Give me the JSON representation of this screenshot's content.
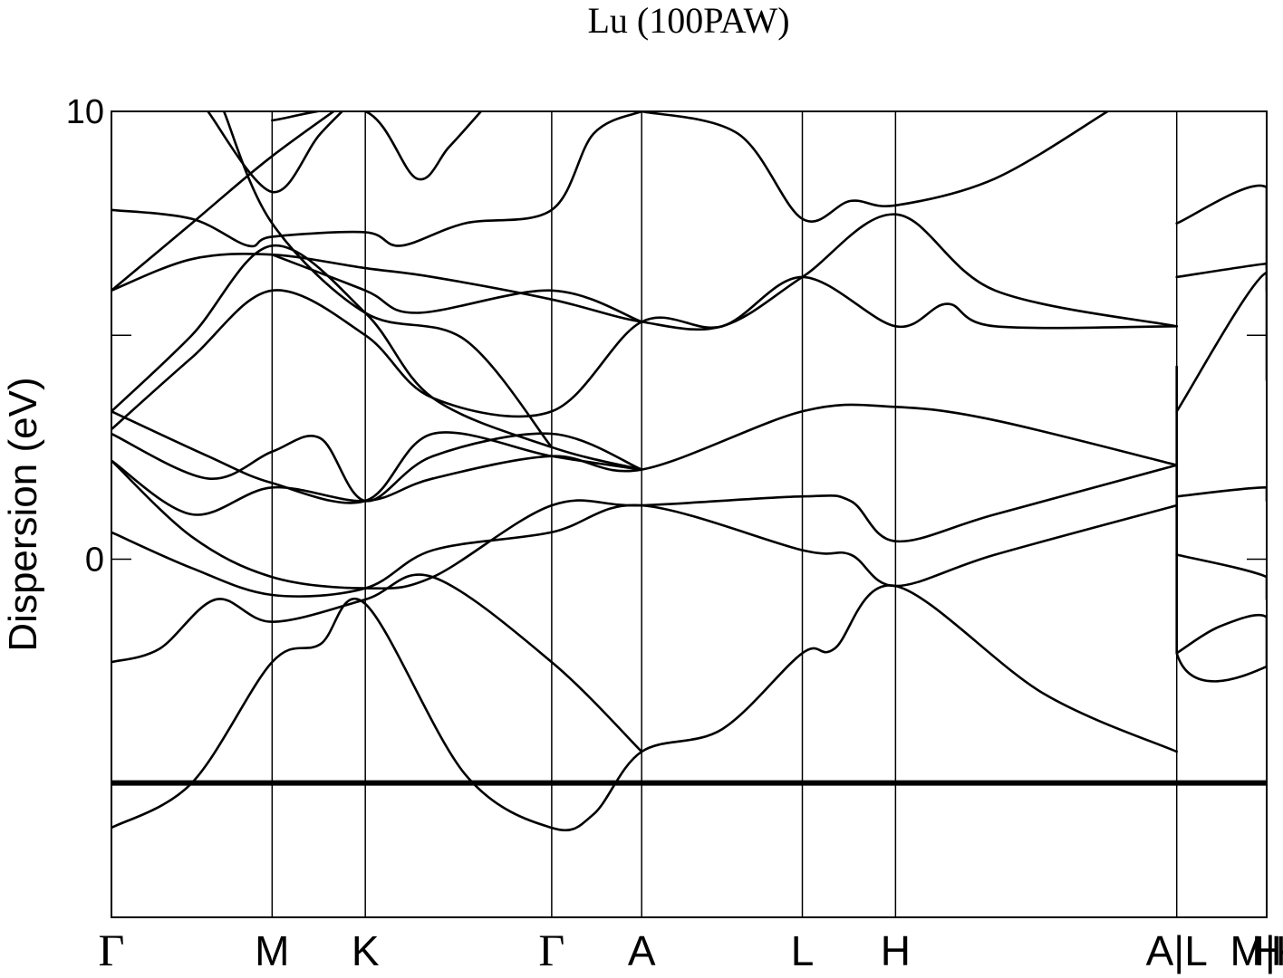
{
  "chart_data": {
    "type": "line",
    "title": "Lu (100PAW)",
    "xlabel": "",
    "ylabel": "Dispersion (eV)",
    "ylim": [
      -8,
      10
    ],
    "yticks": [
      {
        "value": 10,
        "label": "10"
      },
      {
        "value": 5,
        "label": ""
      },
      {
        "value": 0,
        "label": "0"
      },
      {
        "value": -5,
        "label": ""
      }
    ],
    "xlim": [
      0,
      7.19
    ],
    "kpoints": [
      {
        "x": 0.0,
        "label": "Γ",
        "greek": true
      },
      {
        "x": 1.0,
        "label": "M",
        "greek": false
      },
      {
        "x": 1.58,
        "label": "K",
        "greek": false
      },
      {
        "x": 2.74,
        "label": "Γ",
        "greek": true
      },
      {
        "x": 3.3,
        "label": "A",
        "greek": false
      },
      {
        "x": 4.3,
        "label": "L",
        "greek": false
      },
      {
        "x": 4.88,
        "label": "H",
        "greek": false
      },
      {
        "x": 6.63,
        "label": "A|L",
        "greek": false
      },
      {
        "x": 7.19,
        "label": "M|K",
        "greek": false
      }
    ],
    "right_label": "H",
    "grid": false,
    "series": [
      {
        "points": [
          [
            0,
            -5.0
          ],
          [
            7.19,
            -5.0
          ]
        ],
        "flat": true
      },
      {
        "points": [
          [
            0,
            -6.0
          ],
          [
            0.5,
            -5.0
          ],
          [
            1.0,
            -2.3
          ],
          [
            1.3,
            -1.9
          ],
          [
            1.58,
            -1.0
          ],
          [
            2.2,
            -4.8
          ],
          [
            2.74,
            -6.0
          ],
          [
            3.0,
            -5.7
          ],
          [
            3.3,
            -4.3
          ],
          [
            3.8,
            -3.8
          ],
          [
            4.3,
            -2.1
          ],
          [
            4.5,
            -2.0
          ],
          [
            4.88,
            -0.6
          ],
          [
            5.8,
            -3.0
          ],
          [
            6.63,
            -4.3
          ]
        ]
      },
      {
        "points": [
          [
            0,
            -2.3
          ],
          [
            0.3,
            -2.0
          ],
          [
            0.65,
            -0.9
          ],
          [
            1.0,
            -1.4
          ],
          [
            1.58,
            -0.9
          ],
          [
            2.0,
            -0.4
          ],
          [
            2.74,
            -2.3
          ],
          [
            3.3,
            -4.3
          ]
        ]
      },
      {
        "points": [
          [
            0,
            0.6
          ],
          [
            0.5,
            -0.2
          ],
          [
            1.0,
            -0.8
          ],
          [
            1.58,
            -0.65
          ],
          [
            2.0,
            0.2
          ],
          [
            2.74,
            0.6
          ],
          [
            3.3,
            1.2
          ],
          [
            4.3,
            0.2
          ],
          [
            4.6,
            0.1
          ],
          [
            4.88,
            -0.6
          ],
          [
            5.5,
            0.1
          ],
          [
            6.63,
            1.2
          ]
        ]
      },
      {
        "points": [
          [
            0,
            2.2
          ],
          [
            0.5,
            0.5
          ],
          [
            1.0,
            -0.4
          ],
          [
            1.58,
            -0.65
          ],
          [
            2.0,
            -0.4
          ],
          [
            2.74,
            1.2
          ],
          [
            3.3,
            1.2
          ],
          [
            4.3,
            1.4
          ],
          [
            4.6,
            1.3
          ],
          [
            4.88,
            0.4
          ],
          [
            5.5,
            1.0
          ],
          [
            6.63,
            2.1
          ]
        ]
      },
      {
        "points": [
          [
            0,
            2.2
          ],
          [
            0.5,
            1.0
          ],
          [
            1.0,
            1.6
          ],
          [
            1.58,
            1.3
          ],
          [
            2.0,
            1.8
          ],
          [
            2.74,
            2.3
          ],
          [
            3.3,
            2.0
          ],
          [
            4.3,
            3.3
          ],
          [
            4.88,
            3.4
          ],
          [
            5.5,
            3.1
          ],
          [
            6.63,
            2.1
          ]
        ]
      },
      {
        "points": [
          [
            0,
            2.8
          ],
          [
            0.6,
            1.8
          ],
          [
            1.0,
            2.4
          ],
          [
            1.3,
            2.7
          ],
          [
            1.58,
            1.3
          ],
          [
            2.0,
            2.3
          ],
          [
            2.74,
            2.8
          ],
          [
            3.3,
            2.0
          ]
        ]
      },
      {
        "points": [
          [
            0,
            3.3
          ],
          [
            0.6,
            2.3
          ],
          [
            1.0,
            1.7
          ],
          [
            1.58,
            1.3
          ],
          [
            2.0,
            2.8
          ],
          [
            2.74,
            2.3
          ],
          [
            3.3,
            2.0
          ]
        ]
      },
      {
        "points": [
          [
            0,
            2.9
          ],
          [
            0.5,
            4.5
          ],
          [
            1.0,
            6.0
          ],
          [
            1.58,
            5.0
          ],
          [
            2.0,
            3.6
          ],
          [
            2.74,
            3.3
          ],
          [
            3.3,
            5.3
          ],
          [
            3.8,
            5.2
          ],
          [
            4.3,
            6.3
          ],
          [
            4.88,
            5.2
          ],
          [
            5.2,
            5.7
          ],
          [
            5.5,
            5.2
          ],
          [
            6.63,
            5.2
          ]
        ]
      },
      {
        "points": [
          [
            0,
            3.3
          ],
          [
            0.5,
            5.0
          ],
          [
            1.0,
            7.0
          ],
          [
            1.58,
            5.5
          ],
          [
            2.0,
            3.6
          ],
          [
            2.74,
            2.5
          ],
          [
            3.3,
            2.0
          ]
        ]
      },
      {
        "points": [
          [
            0,
            6.0
          ],
          [
            0.5,
            6.7
          ],
          [
            1.0,
            6.8
          ],
          [
            1.58,
            6.5
          ],
          [
            2.0,
            6.3
          ],
          [
            2.74,
            5.8
          ],
          [
            3.3,
            5.3
          ],
          [
            3.8,
            5.2
          ],
          [
            4.3,
            6.3
          ],
          [
            4.88,
            7.7
          ],
          [
            5.5,
            6.0
          ],
          [
            6.63,
            5.2
          ]
        ]
      },
      {
        "points": [
          [
            0,
            6.0
          ],
          [
            0.5,
            7.5
          ],
          [
            1.0,
            9.0
          ],
          [
            1.58,
            10.5
          ]
        ]
      },
      {
        "points": [
          [
            0,
            7.8
          ],
          [
            0.5,
            7.6
          ],
          [
            0.85,
            7.0
          ],
          [
            1.0,
            7.2
          ],
          [
            1.58,
            7.3
          ],
          [
            1.8,
            7.0
          ],
          [
            2.2,
            7.5
          ],
          [
            2.74,
            7.8
          ],
          [
            3.0,
            9.5
          ],
          [
            3.3,
            10.0
          ]
        ]
      },
      {
        "points": [
          [
            0.6,
            10.0
          ],
          [
            1.0,
            8.2
          ],
          [
            1.3,
            9.5
          ],
          [
            1.58,
            10.5
          ]
        ]
      },
      {
        "points": [
          [
            1.0,
            9.8
          ],
          [
            1.58,
            10.0
          ],
          [
            1.9,
            8.5
          ],
          [
            2.1,
            9.2
          ],
          [
            2.3,
            10.0
          ]
        ]
      },
      {
        "points": [
          [
            0.7,
            10.0
          ],
          [
            1.0,
            7.5
          ],
          [
            1.58,
            5.5
          ],
          [
            2.2,
            4.9
          ],
          [
            2.74,
            2.5
          ]
        ]
      },
      {
        "points": [
          [
            1.0,
            6.8
          ],
          [
            1.58,
            6.0
          ],
          [
            1.9,
            5.5
          ],
          [
            2.74,
            6.0
          ],
          [
            3.3,
            5.3
          ]
        ]
      },
      {
        "points": [
          [
            3.3,
            10.0
          ],
          [
            3.9,
            9.5
          ],
          [
            4.3,
            7.6
          ],
          [
            4.6,
            8.0
          ],
          [
            4.88,
            7.9
          ],
          [
            5.5,
            8.5
          ],
          [
            6.2,
            10.0
          ]
        ]
      },
      {
        "points": [
          [
            6.63,
            4.3
          ],
          [
            6.63,
            -2.1
          ],
          [
            7.19,
            -2.4
          ],
          [
            7.19,
            -1.3
          ],
          [
            6.9,
            -1.5
          ],
          [
            6.63,
            -2.1
          ]
        ]
      },
      {
        "points": [
          [
            6.63,
            1.4
          ],
          [
            7.19,
            1.6
          ],
          [
            7.19,
            1.3
          ],
          [
            7.6,
            0.3
          ]
        ]
      },
      {
        "points": [
          [
            6.63,
            0.1
          ],
          [
            7.19,
            -0.4
          ],
          [
            7.19,
            -0.9
          ],
          [
            7.6,
            -0.5
          ]
        ]
      },
      {
        "points": [
          [
            6.63,
            3.3
          ],
          [
            7.19,
            6.4
          ],
          [
            7.19,
            4.0
          ],
          [
            7.6,
            3.3
          ]
        ]
      },
      {
        "points": [
          [
            6.63,
            7.5
          ],
          [
            7.19,
            8.3
          ],
          [
            7.19,
            6.0
          ],
          [
            7.6,
            5.2
          ]
        ]
      },
      {
        "points": [
          [
            6.63,
            6.3
          ],
          [
            7.19,
            6.6
          ],
          [
            7.19,
            6.5
          ],
          [
            7.6,
            7.7
          ]
        ]
      }
    ]
  }
}
